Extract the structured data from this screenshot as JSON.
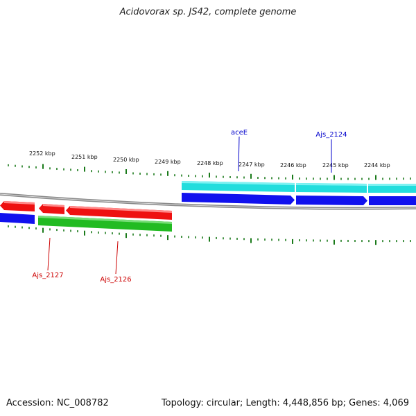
{
  "title": "Acidovorax sp. JS42, complete genome",
  "accession": "Accession: NC_008782",
  "topology": "Topology: circular; Length: 4,448,856 bp; Genes: 4,069",
  "colors": {
    "background": "#ffffff",
    "tick": "#1a7a1a",
    "backbone": "#8a8a8a",
    "red_genes": "#ee1111",
    "green_genes": "#22bb22",
    "blue_genes": "#1111ee",
    "cyan_genes": "#22dddd",
    "label_red": "#cc0000",
    "label_blue": "#0000cc"
  },
  "scale_labels": [
    "2252 kbp",
    "2251 kbp",
    "2250 kbp",
    "2249 kbp",
    "2248 kbp",
    "2247 kbp",
    "2246 kbp",
    "2245 kbp",
    "2244 kbp"
  ],
  "gene_labels": {
    "aceE": "aceE",
    "ajs2124": "Ajs_2124",
    "ajs2127": "Ajs_2127",
    "ajs2126": "Ajs_2126"
  }
}
